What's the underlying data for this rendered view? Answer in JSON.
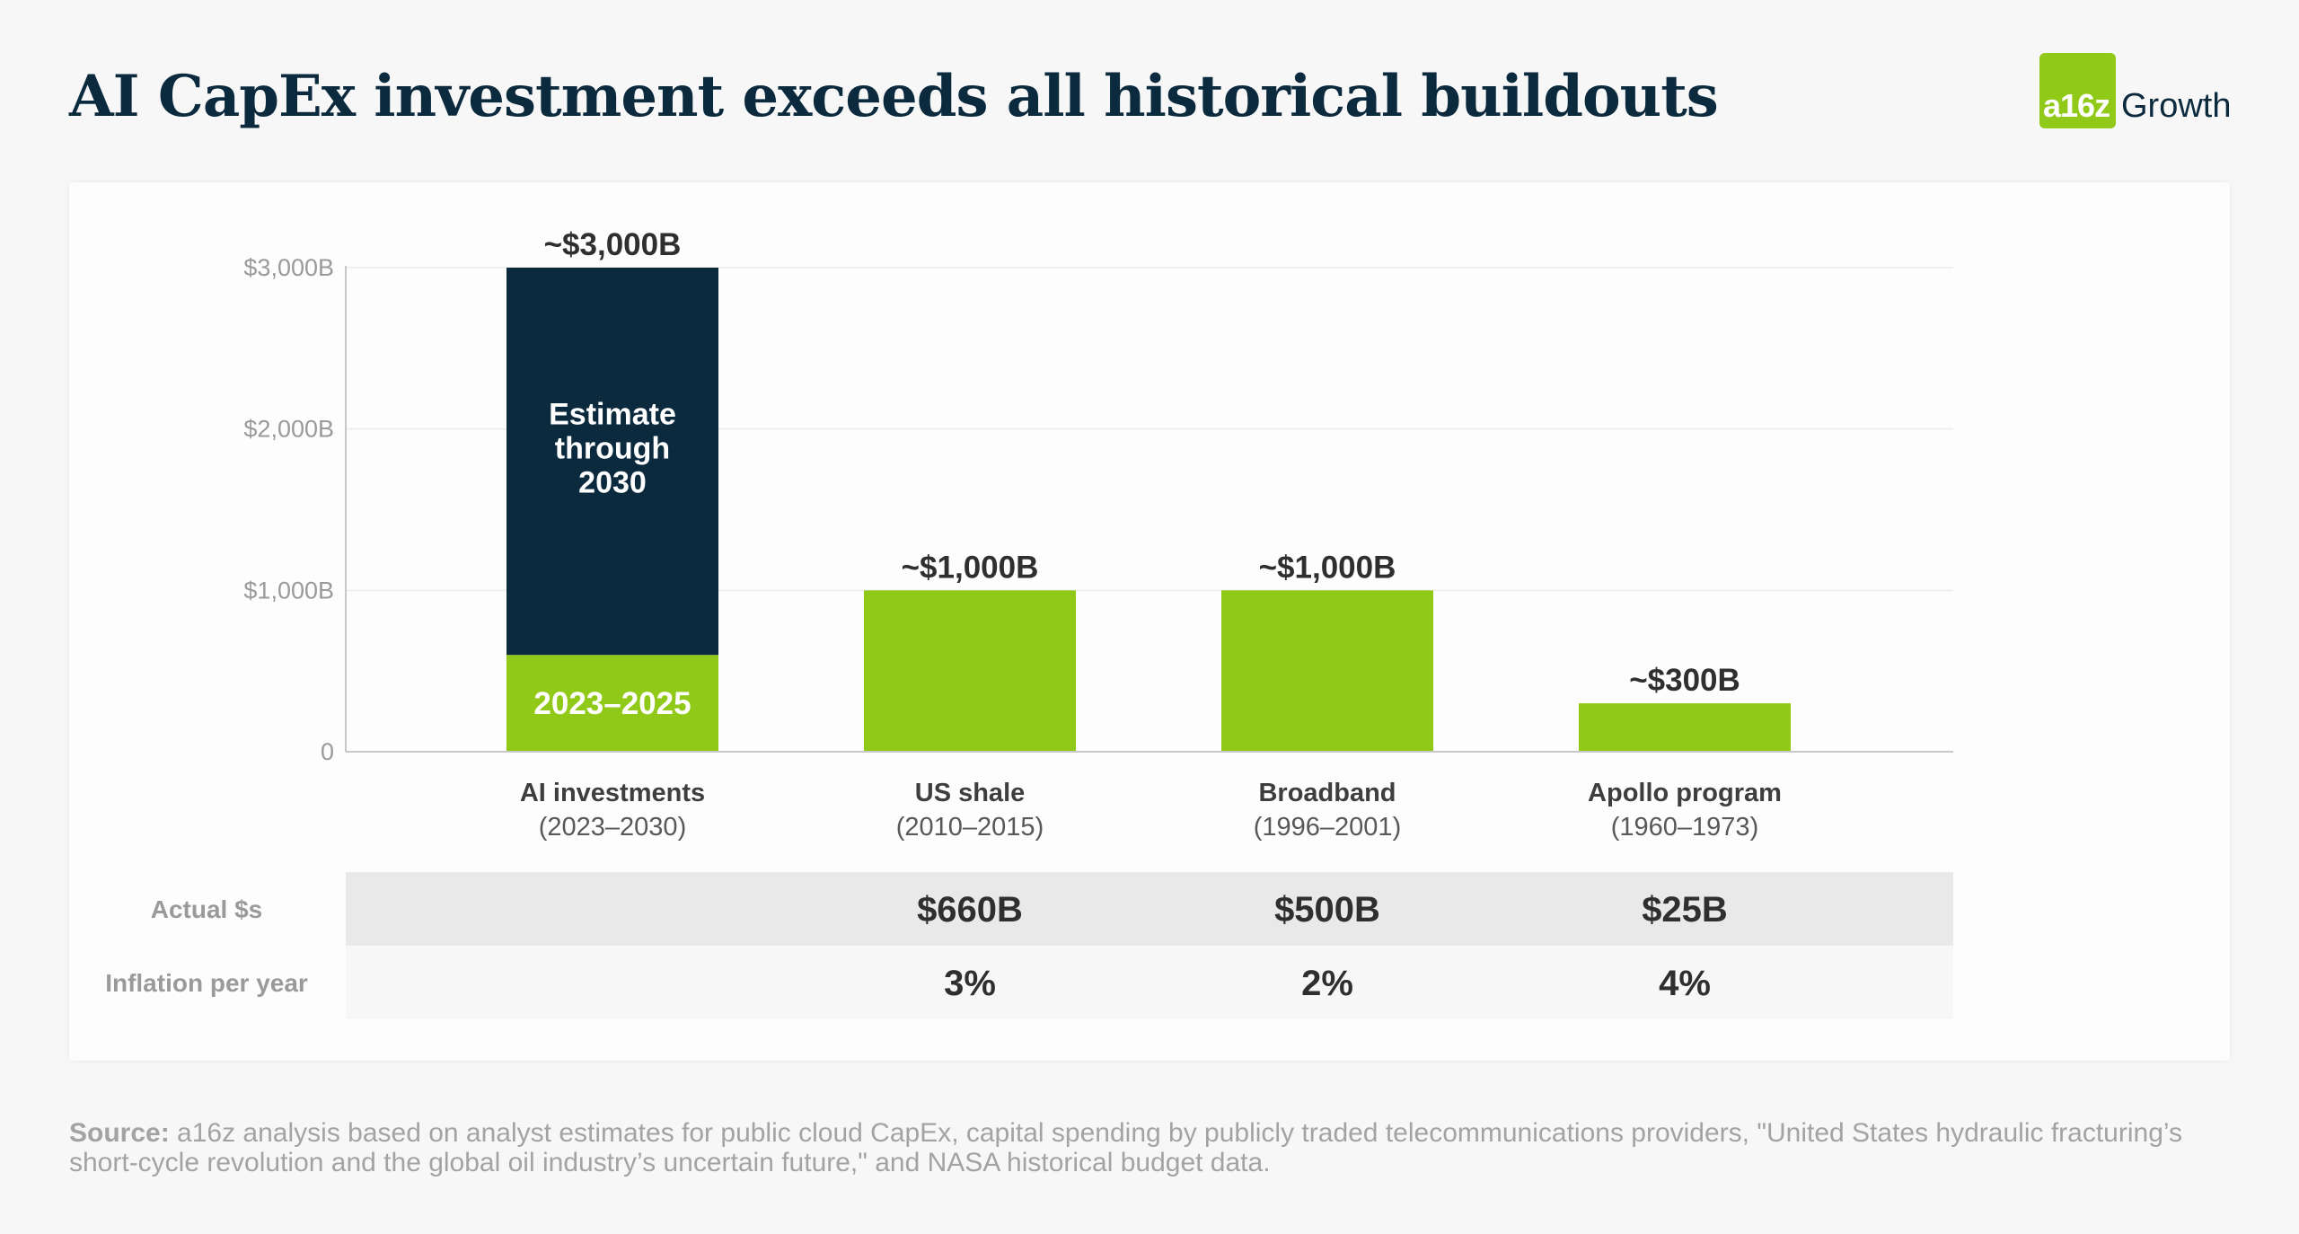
{
  "title": "AI CapEx investment exceeds all historical buildouts",
  "logo": {
    "mark": "a16z",
    "word": "Growth",
    "color": "#91c918"
  },
  "chart_data": {
    "type": "bar",
    "title": "AI CapEx investment exceeds all historical buildouts",
    "ylim": [
      0,
      3000
    ],
    "yticks": [
      0,
      1000,
      2000,
      3000
    ],
    "ytick_labels": [
      "0",
      "$1,000B",
      "$2,000B",
      "$3,000B"
    ],
    "grid": true,
    "categories": [
      {
        "name": "AI investments",
        "period": "(2023–2030)"
      },
      {
        "name": "US shale",
        "period": "(2010–2015)"
      },
      {
        "name": "Broadband",
        "period": "(1996–2001)"
      },
      {
        "name": "Apollo program",
        "period": "(1960–1973)"
      }
    ],
    "series": [
      {
        "name": "2023–2025",
        "color": "#91c918",
        "values": [
          600,
          1000,
          1000,
          300
        ]
      },
      {
        "name": "Estimate through 2030",
        "color": "#0b2a3e",
        "values": [
          2400,
          0,
          0,
          0
        ]
      }
    ],
    "segment_labels": [
      "Estimate through 2030",
      "2023–2025"
    ],
    "total_labels": [
      "~$3,000B",
      "~$1,000B",
      "~$1,000B",
      "~$300B"
    ],
    "table": {
      "rows": [
        {
          "label": "Actual $s",
          "values": [
            "",
            "$660B",
            "$500B",
            "$25B"
          ]
        },
        {
          "label": "Inflation per year",
          "values": [
            "",
            "3%",
            "2%",
            "4%"
          ]
        }
      ]
    }
  },
  "footer": {
    "source_label": "Source:",
    "source_text": "a16z analysis based on analyst estimates for public cloud CapEx, capital spending by publicly traded telecommunications providers, \"United States hydraulic fracturing’s short-cycle revolution and the global oil industry’s uncertain future,\" and NASA historical budget data."
  }
}
